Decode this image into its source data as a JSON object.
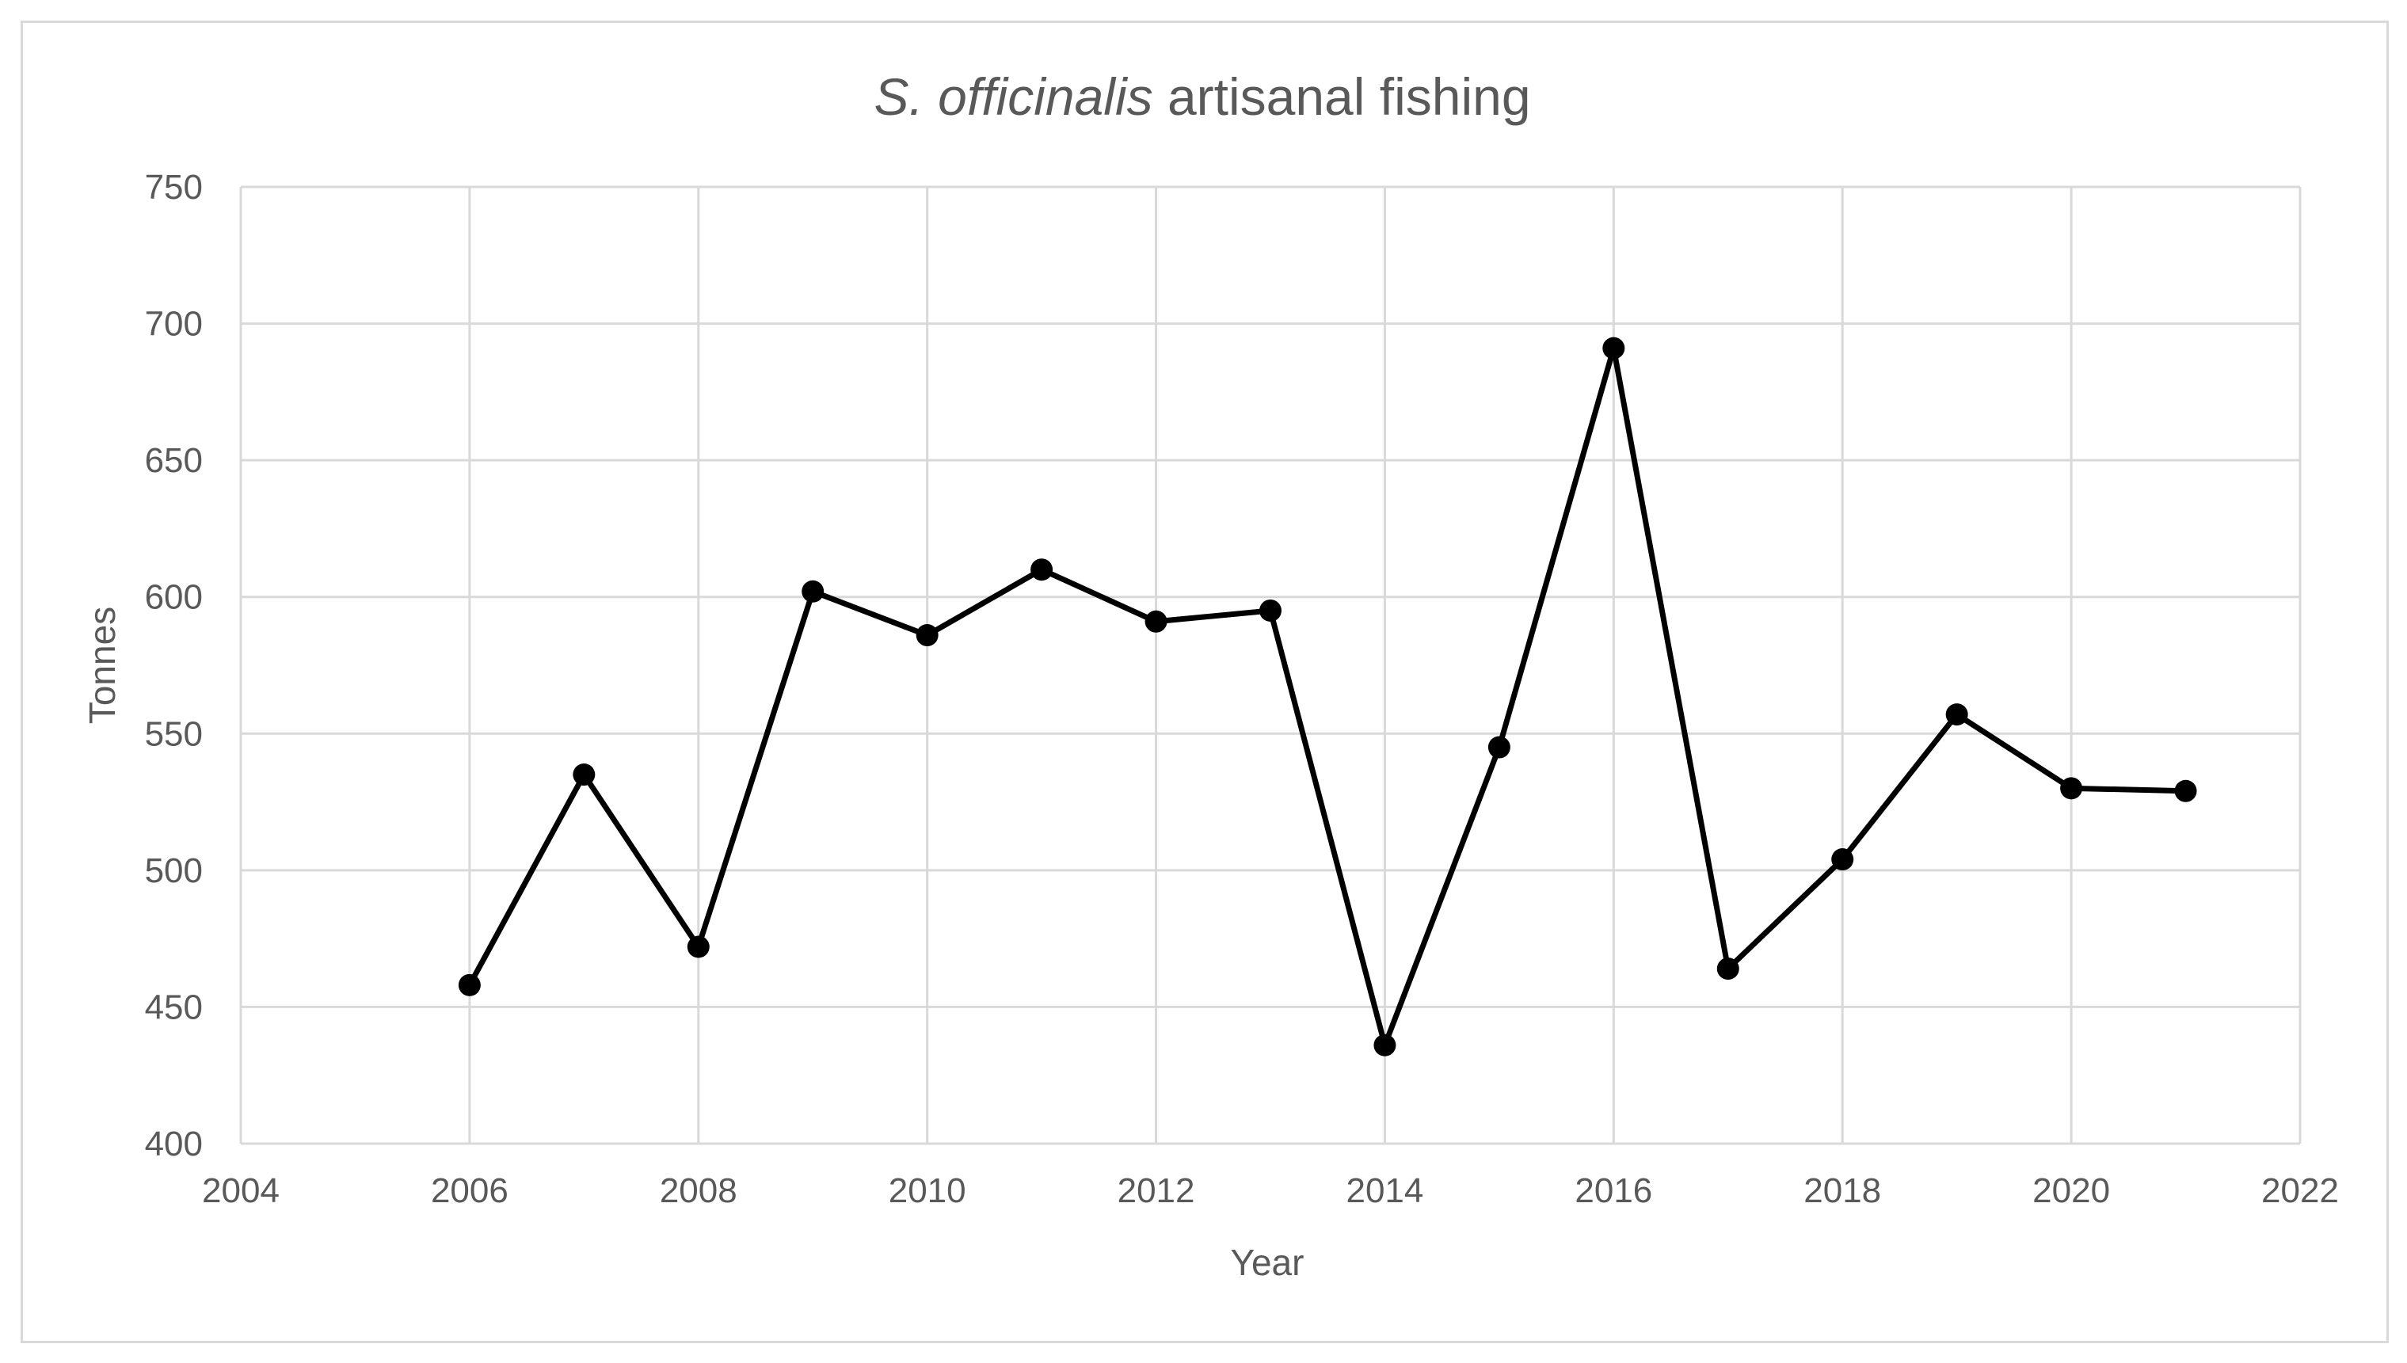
{
  "chart_data": {
    "type": "scatter",
    "mode": "lines+markers",
    "title": {
      "italic": "S. officinalis",
      "rest": " artisanal fishing"
    },
    "xlabel": "Year",
    "ylabel": "Tonnes",
    "xlim": [
      2004,
      2022
    ],
    "ylim": [
      400,
      750
    ],
    "xticks": [
      2004,
      2006,
      2008,
      2010,
      2012,
      2014,
      2016,
      2018,
      2020,
      2022
    ],
    "yticks": [
      400,
      450,
      500,
      550,
      600,
      650,
      700,
      750
    ],
    "grid": true,
    "series": [
      {
        "color": "#000000",
        "x": [
          2006,
          2007,
          2008,
          2009,
          2010,
          2011,
          2012,
          2013,
          2014,
          2015,
          2016,
          2017,
          2018,
          2019,
          2020,
          2021
        ],
        "y": [
          458,
          535,
          472,
          602,
          586,
          610,
          591,
          595,
          436,
          545,
          691,
          464,
          504,
          557,
          530,
          529
        ]
      }
    ]
  }
}
